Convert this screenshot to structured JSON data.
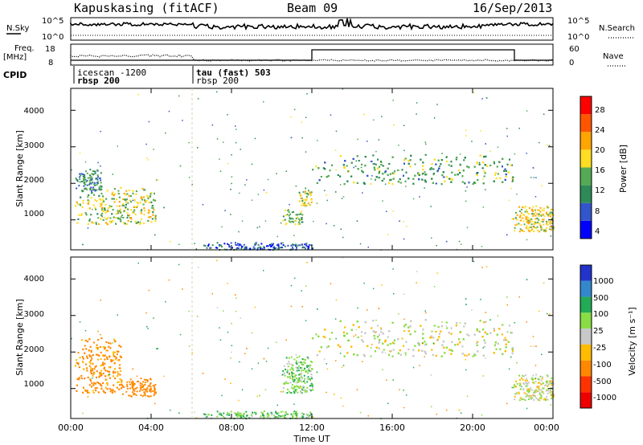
{
  "header": {
    "station": "Kapuskasing (fitACF)",
    "beam": "Beam 09",
    "date": "16/Sep/2013"
  },
  "noise_panel": {
    "left_label": "N.Sky",
    "left_ticks": [
      "10^5",
      "10^0"
    ],
    "right_ticks": [
      "10^5",
      "10^0"
    ],
    "right_label": "N.Search"
  },
  "freq_panel": {
    "left_label_line1": "Freq.",
    "left_label_line2": "[MHz]",
    "left_ticks": [
      "18",
      "8"
    ],
    "right_ticks": [
      "60",
      "0"
    ],
    "right_label": "Nave"
  },
  "cpid": {
    "label": "CPID",
    "segments": [
      {
        "line1": "icescan -1200",
        "line2": "rbsp 200"
      },
      {
        "line1": "tau (fast) 503",
        "line2": "rbsp 200"
      }
    ]
  },
  "power_panel": {
    "ylabel": "Slant Range [km]",
    "yticks": [
      "1000",
      "2000",
      "3000",
      "4000"
    ],
    "colorbar_label": "Power [dB]",
    "colorbar_ticks": [
      "4",
      "8",
      "12",
      "16",
      "20",
      "24",
      "28"
    ],
    "colorbar_colors": [
      "#0000ff",
      "#3355cc",
      "#2e8b57",
      "#55aa55",
      "#ffdd22",
      "#ffa500",
      "#ff5500",
      "#ff0000"
    ]
  },
  "velocity_panel": {
    "ylabel": "Slant Range [km]",
    "yticks": [
      "1000",
      "2000",
      "3000",
      "4000"
    ],
    "colorbar_label": "Velocity [m s⁻¹]",
    "colorbar_ticks": [
      "1000",
      "500",
      "100",
      "25",
      "-25",
      "-100",
      "-500",
      "-1000"
    ],
    "colorbar_colors": [
      "#2233cc",
      "#3388cc",
      "#22aa55",
      "#88dd44",
      "#c8c8c8",
      "#ffbb00",
      "#ff8800",
      "#ff3300",
      "#ee0000"
    ]
  },
  "xaxis": {
    "ticks": [
      "00:00",
      "04:00",
      "08:00",
      "12:00",
      "16:00",
      "20:00",
      "00:00"
    ],
    "label": "Time UT"
  },
  "chart_data": {
    "type": "heatmap",
    "x_range_hours": [
      0,
      24
    ],
    "y_range_km": [
      180,
      4600
    ],
    "power_scale_db": [
      0,
      32
    ],
    "velocity_scale": [
      -1000,
      1000
    ],
    "cpid_switch_hour": 6.0,
    "power_regions": [
      {
        "t": [
          0.2,
          4.2
        ],
        "r": [
          900,
          1900
        ],
        "p": 16
      },
      {
        "t": [
          0.2,
          1.5
        ],
        "r": [
          1800,
          2400
        ],
        "p": 10
      },
      {
        "t": [
          10.5,
          11.5
        ],
        "r": [
          900,
          1300
        ],
        "p": 14
      },
      {
        "t": [
          11.3,
          12.0
        ],
        "r": [
          1400,
          1900
        ],
        "p": 16
      },
      {
        "t": [
          12.0,
          22.0
        ],
        "r": [
          2000,
          2800
        ],
        "p": 12
      },
      {
        "t": [
          22.0,
          24.0
        ],
        "r": [
          700,
          1400
        ],
        "p": 18
      },
      {
        "t": [
          6.5,
          12.0
        ],
        "r": [
          200,
          400
        ],
        "p": 6
      }
    ],
    "velocity_regions": [
      {
        "t": [
          0.2,
          2.5
        ],
        "r": [
          900,
          2400
        ],
        "v": -150
      },
      {
        "t": [
          2.5,
          4.2
        ],
        "r": [
          800,
          1300
        ],
        "v": -300
      },
      {
        "t": [
          10.5,
          12.0
        ],
        "r": [
          900,
          1900
        ],
        "v": 60
      },
      {
        "t": [
          12.0,
          22.0
        ],
        "r": [
          1900,
          2900
        ],
        "v": 0
      },
      {
        "t": [
          22.0,
          24.0
        ],
        "r": [
          700,
          1400
        ],
        "v": 0
      },
      {
        "t": [
          6.5,
          12.0
        ],
        "r": [
          200,
          400
        ],
        "v": 80
      }
    ]
  }
}
